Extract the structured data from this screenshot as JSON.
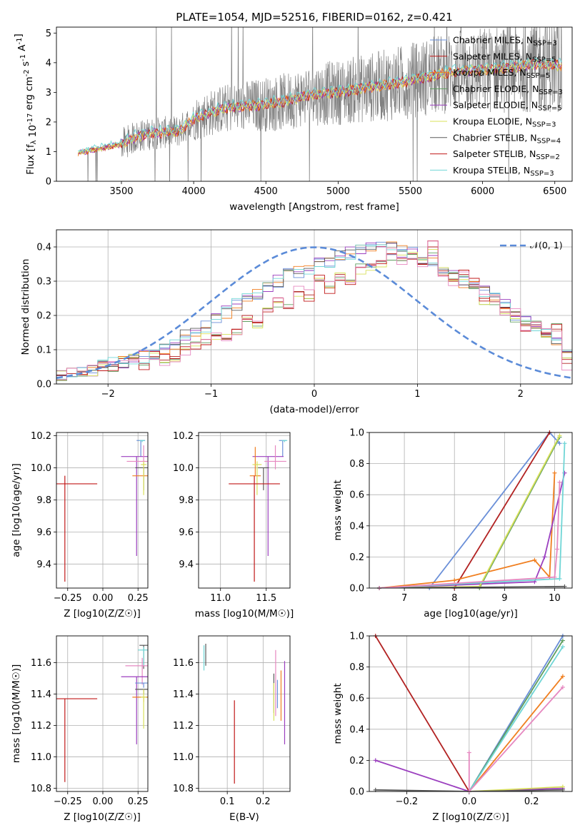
{
  "title": "PLATE=1054, MJD=52516, FIBERID=0162, z=0.421",
  "colors": [
    "#6a8fd8",
    "#b22222",
    "#f07f20",
    "#5f9e5f",
    "#9b3fbf",
    "#d8e05a",
    "#5a5a5a",
    "#c01818",
    "#70d6d6",
    "#e688c0"
  ],
  "chart_data": [
    {
      "type": "line",
      "name": "spectrum",
      "xlabel": "wavelength [Angstrom, rest frame]",
      "ylabel": "Flux [f_λ 10^-17 erg cm^-2 s^-1 A^-1]",
      "xlim": [
        3050,
        6620
      ],
      "ylim": [
        0,
        5.2
      ],
      "xticks": [
        "3500",
        "4000",
        "4500",
        "5000",
        "5500",
        "6000",
        "6500"
      ],
      "yticks": [
        "0",
        "1",
        "2",
        "3",
        "4",
        "5"
      ],
      "legend_position": "upper right",
      "data_range": [
        3200,
        6550
      ],
      "model_anchors_x": [
        3200,
        3500,
        3600,
        3700,
        3900,
        4000,
        4200,
        4400,
        4600,
        4800,
        5000,
        5200,
        5400,
        5600,
        5800,
        6000,
        6200,
        6400,
        6550
      ],
      "model_anchors_y": [
        0.95,
        1.25,
        1.5,
        1.6,
        1.7,
        2.1,
        2.45,
        2.55,
        2.65,
        2.9,
        3.0,
        3.15,
        3.3,
        3.5,
        3.7,
        3.75,
        3.85,
        3.95,
        3.9
      ],
      "series": [
        {
          "name": "Chabrier MILES, N_SSP=3"
        },
        {
          "name": "Salpeter MILES, N_SSP=5"
        },
        {
          "name": "Kroupa MILES, N_SSP=5"
        },
        {
          "name": "Chabrier ELODIE, N_SSP=3"
        },
        {
          "name": "Salpeter ELODIE, N_SSP=5"
        },
        {
          "name": "Kroupa ELODIE, N_SSP=3"
        },
        {
          "name": "Chabrier STELIB, N_SSP=4"
        },
        {
          "name": "Salpeter STELIB, N_SSP=2"
        },
        {
          "name": "Kroupa STELIB, N_SSP=3"
        }
      ]
    },
    {
      "type": "line",
      "name": "residual histogram",
      "xlabel": "(data-model)/error",
      "ylabel": "Normed distribution",
      "xlim": [
        -2.5,
        2.5
      ],
      "ylim": [
        0,
        0.45
      ],
      "xticks": [
        "−2",
        "−1",
        "0",
        "1",
        "2"
      ],
      "yticks": [
        "0.0",
        "0.1",
        "0.2",
        "0.3",
        "0.4"
      ],
      "bin_width": 0.1,
      "bin_start": -2.5,
      "reference": {
        "name": "𝒩(0, 1)",
        "mean": 0,
        "sigma": 1
      },
      "series": [
        {
          "values": [
            0.02,
            0.025,
            0.03,
            0.04,
            0.05,
            0.06,
            0.065,
            0.07,
            0.08,
            0.09,
            0.1,
            0.12,
            0.14,
            0.15,
            0.17,
            0.19,
            0.21,
            0.23,
            0.25,
            0.26,
            0.28,
            0.3,
            0.32,
            0.33,
            0.34,
            0.355,
            0.36,
            0.37,
            0.38,
            0.39,
            0.395,
            0.395,
            0.395,
            0.39,
            0.38,
            0.37,
            0.36,
            0.34,
            0.32,
            0.3,
            0.29,
            0.27,
            0.25,
            0.23,
            0.2,
            0.18,
            0.16,
            0.14,
            0.12,
            0.1
          ]
        },
        {
          "values": [
            0.025,
            0.03,
            0.035,
            0.04,
            0.05,
            0.055,
            0.06,
            0.07,
            0.06,
            0.08,
            0.07,
            0.08,
            0.1,
            0.12,
            0.13,
            0.14,
            0.13,
            0.16,
            0.2,
            0.18,
            0.22,
            0.24,
            0.22,
            0.27,
            0.26,
            0.3,
            0.28,
            0.32,
            0.3,
            0.34,
            0.35,
            0.36,
            0.38,
            0.36,
            0.38,
            0.35,
            0.4,
            0.33,
            0.3,
            0.32,
            0.29,
            0.25,
            0.24,
            0.21,
            0.2,
            0.17,
            0.18,
            0.15,
            0.16,
            0.06
          ]
        }
      ]
    },
    {
      "type": "scatter",
      "name": "age vs metallicity",
      "xlabel": "Z [log10(Z/Z☉)]",
      "ylabel": "age  [log10(age/yr)]",
      "xlim": [
        -0.33,
        0.32
      ],
      "ylim": [
        9.25,
        10.22
      ],
      "xticks": [
        "−0.25",
        "0.00",
        "0.25"
      ],
      "yticks": [
        "9.4",
        "9.6",
        "9.8",
        "10.0",
        "10.2"
      ],
      "markers": [
        {
          "x": 0.27,
          "y": 10.17,
          "xerr": 0.03,
          "yerr_lo": 0.1,
          "yerr_hi": 0.0,
          "color": 0
        },
        {
          "x": 0.24,
          "y": 10.07,
          "xerr": 0.11,
          "yerr_lo": 0.62,
          "yerr_hi": 0.0,
          "color": 4
        },
        {
          "x": 0.29,
          "y": 10.04,
          "xerr": 0.12,
          "yerr_lo": 0.05,
          "yerr_hi": 0.1,
          "color": 9
        },
        {
          "x": 0.29,
          "y": 10.0,
          "xerr": 0.06,
          "yerr_lo": 0.14,
          "yerr_hi": 0.0,
          "color": 6
        },
        {
          "x": 0.29,
          "y": 9.95,
          "xerr": 0.08,
          "yerr_lo": 0.0,
          "yerr_hi": 0.0,
          "color": 2
        },
        {
          "x": 0.29,
          "y": 10.02,
          "xerr": 0.02,
          "yerr_lo": 0.19,
          "yerr_hi": 0.02,
          "color": 5
        },
        {
          "x": 0.28,
          "y": 10.17,
          "xerr": 0.02,
          "yerr_lo": 0.01,
          "yerr_hi": 0.0,
          "color": 8
        },
        {
          "x": -0.27,
          "y": 9.9,
          "xerr": 0.23,
          "yerr_lo": 0.61,
          "yerr_hi": 0.05,
          "color": 7
        }
      ]
    },
    {
      "type": "scatter",
      "name": "age vs mass",
      "xlabel": "mass [log10(M/M☉)]",
      "ylabel": "",
      "xlim": [
        10.76,
        11.76
      ],
      "ylim": [
        9.25,
        10.22
      ],
      "xticks": [
        "11.0",
        "11.5"
      ],
      "yticks": [
        "9.4",
        "9.6",
        "9.8",
        "10.0",
        "10.2"
      ],
      "markers": [
        {
          "x": 11.68,
          "y": 10.17,
          "xerr": 0.04,
          "yerr_lo": 0.1,
          "yerr_hi": 0.0,
          "color": 0
        },
        {
          "x": 11.52,
          "y": 10.07,
          "xerr": 0.17,
          "yerr_lo": 0.62,
          "yerr_hi": 0.0,
          "color": 4
        },
        {
          "x": 11.6,
          "y": 10.04,
          "xerr": 0.12,
          "yerr_lo": 0.05,
          "yerr_hi": 0.1,
          "color": 9
        },
        {
          "x": 11.47,
          "y": 10.0,
          "xerr": 0.06,
          "yerr_lo": 0.14,
          "yerr_hi": 0.0,
          "color": 6
        },
        {
          "x": 11.38,
          "y": 9.95,
          "xerr": 0.06,
          "yerr_lo": 0.0,
          "yerr_hi": 0.18,
          "color": 2
        },
        {
          "x": 11.4,
          "y": 10.02,
          "xerr": 0.05,
          "yerr_lo": 0.19,
          "yerr_hi": 0.02,
          "color": 5
        },
        {
          "x": 11.7,
          "y": 10.17,
          "xerr": 0.03,
          "yerr_lo": 0.01,
          "yerr_hi": 0.0,
          "color": 8
        },
        {
          "x": 11.37,
          "y": 9.9,
          "xerr": 0.28,
          "yerr_lo": 0.61,
          "yerr_hi": 0.05,
          "color": 7
        }
      ]
    },
    {
      "type": "line",
      "name": "mass weight vs age",
      "xlabel": "age  [log10(age/yr)]",
      "ylabel": "mass weight",
      "xlim": [
        6.3,
        10.35
      ],
      "ylim": [
        0,
        1
      ],
      "xticks": [
        "7",
        "8",
        "9",
        "10"
      ],
      "yticks": [
        "0.0",
        "0.2",
        "0.4",
        "0.6",
        "0.8",
        "1.0"
      ],
      "series": [
        {
          "color": 0,
          "x": [
            6.5,
            7.5,
            9.9,
            10.1
          ],
          "y": [
            0.0,
            0.0,
            1.0,
            0.93
          ]
        },
        {
          "color": 1,
          "x": [
            6.5,
            8.0,
            9.9
          ],
          "y": [
            0.0,
            0.0,
            1.0
          ]
        },
        {
          "color": 2,
          "x": [
            6.5,
            8.0,
            9.6,
            9.9,
            10.0
          ],
          "y": [
            0.0,
            0.05,
            0.18,
            0.07,
            0.74
          ]
        },
        {
          "color": 3,
          "x": [
            6.5,
            8.5,
            10.1
          ],
          "y": [
            0.0,
            0.0,
            0.97
          ]
        },
        {
          "color": 4,
          "x": [
            6.5,
            9.6,
            9.8,
            10.2
          ],
          "y": [
            0.0,
            0.04,
            0.2,
            0.74
          ]
        },
        {
          "color": 5,
          "x": [
            6.5,
            8.5,
            10.1
          ],
          "y": [
            0.0,
            0.01,
            0.98
          ]
        },
        {
          "color": 6,
          "x": [
            6.5,
            10.2
          ],
          "y": [
            0.0,
            0.01
          ]
        },
        {
          "color": 8,
          "x": [
            6.5,
            10.1,
            10.2
          ],
          "y": [
            0.0,
            0.06,
            0.93
          ]
        },
        {
          "color": 9,
          "x": [
            6.5,
            10.0,
            10.05,
            10.1
          ],
          "y": [
            0.0,
            0.07,
            0.25,
            0.68
          ]
        }
      ]
    },
    {
      "type": "scatter",
      "name": "mass vs metallicity",
      "xlabel": "Z [log10(Z/Z☉)]",
      "ylabel": "mass [log10(M/M☉)]",
      "xlim": [
        -0.33,
        0.32
      ],
      "ylim": [
        10.78,
        11.77
      ],
      "xticks": [
        "−0.25",
        "0.00",
        "0.25"
      ],
      "yticks": [
        "10.8",
        "11.0",
        "11.2",
        "11.4",
        "11.6"
      ],
      "markers": [
        {
          "x": 0.29,
          "y": 11.71,
          "xerr": 0.03,
          "yerr_lo": 0.15,
          "yerr_hi": 0.0,
          "color": 6
        },
        {
          "x": 0.29,
          "y": 11.68,
          "xerr": 0.04,
          "yerr_lo": 0.1,
          "yerr_hi": 0.02,
          "color": 8
        },
        {
          "x": 0.28,
          "y": 11.58,
          "xerr": 0.12,
          "yerr_lo": 0.12,
          "yerr_hi": 0.05,
          "color": 9
        },
        {
          "x": 0.24,
          "y": 11.51,
          "xerr": 0.11,
          "yerr_lo": 0.43,
          "yerr_hi": 0.0,
          "color": 4
        },
        {
          "x": 0.29,
          "y": 11.47,
          "xerr": 0.06,
          "yerr_lo": 0.03,
          "yerr_hi": 0.0,
          "color": 0
        },
        {
          "x": 0.29,
          "y": 11.43,
          "xerr": 0.06,
          "yerr_lo": 0.03,
          "yerr_hi": 0.0,
          "color": 6
        },
        {
          "x": 0.29,
          "y": 11.38,
          "xerr": 0.08,
          "yerr_lo": 0.03,
          "yerr_hi": 0.0,
          "color": 2
        },
        {
          "x": 0.29,
          "y": 11.38,
          "xerr": 0.02,
          "yerr_lo": 0.2,
          "yerr_hi": 0.05,
          "color": 5
        },
        {
          "x": -0.27,
          "y": 11.37,
          "xerr": 0.23,
          "yerr_lo": 0.53,
          "yerr_hi": 0.0,
          "color": 7
        }
      ]
    },
    {
      "type": "scatter",
      "name": "mass vs extinction",
      "xlabel": "E(B-V)",
      "ylabel": "",
      "xlim": [
        0.02,
        0.275
      ],
      "ylim": [
        10.78,
        11.77
      ],
      "xticks": [
        "0.1",
        "0.2"
      ],
      "yticks": [
        "10.8",
        "11.0",
        "11.2",
        "11.4",
        "11.6"
      ],
      "vlines": [
        {
          "x": 0.04,
          "y0": 11.58,
          "y1": 11.72,
          "color": 6
        },
        {
          "x": 0.035,
          "y0": 11.55,
          "y1": 11.71,
          "color": 8
        },
        {
          "x": 0.12,
          "y0": 10.83,
          "y1": 11.36,
          "color": 7
        },
        {
          "x": 0.23,
          "y0": 11.28,
          "y1": 11.53,
          "color": 6
        },
        {
          "x": 0.23,
          "y0": 11.23,
          "y1": 11.47,
          "color": 5
        },
        {
          "x": 0.235,
          "y0": 11.26,
          "y1": 11.68,
          "color": 9
        },
        {
          "x": 0.24,
          "y0": 11.31,
          "y1": 11.49,
          "color": 0
        },
        {
          "x": 0.25,
          "y0": 11.23,
          "y1": 11.55,
          "color": 2
        },
        {
          "x": 0.26,
          "y0": 11.08,
          "y1": 11.61,
          "color": 4
        }
      ]
    },
    {
      "type": "line",
      "name": "mass weight vs metallicity",
      "xlabel": "Z [log10(Z/Z☉)]",
      "ylabel": "mass weight",
      "xlim": [
        -0.32,
        0.33
      ],
      "ylim": [
        0,
        1
      ],
      "xticks": [
        "−0.2",
        "0.0",
        "0.2"
      ],
      "yticks": [
        "0.0",
        "0.2",
        "0.4",
        "0.6",
        "0.8",
        "1.0"
      ],
      "series": [
        {
          "color": 0,
          "x": [
            0.0,
            0.3
          ],
          "y": [
            0.0,
            1.0
          ]
        },
        {
          "color": 1,
          "x": [
            -0.3,
            0.0
          ],
          "y": [
            1.0,
            0.0
          ]
        },
        {
          "color": 2,
          "x": [
            0.0,
            0.3
          ],
          "y": [
            0.0,
            0.74
          ]
        },
        {
          "color": 3,
          "x": [
            0.0,
            0.3
          ],
          "y": [
            0.0,
            0.97
          ]
        },
        {
          "color": 4,
          "x": [
            -0.3,
            0.0,
            0.3
          ],
          "y": [
            0.2,
            0.0,
            0.02
          ]
        },
        {
          "color": 5,
          "x": [
            0.0,
            0.3
          ],
          "y": [
            0.0,
            0.03
          ]
        },
        {
          "color": 6,
          "x": [
            -0.3,
            0.0,
            0.3
          ],
          "y": [
            0.01,
            0.0,
            0.01
          ]
        },
        {
          "color": 8,
          "x": [
            0.0,
            0.3
          ],
          "y": [
            0.0,
            0.93
          ]
        },
        {
          "color": 9,
          "x": [
            0.0,
            0.0,
            0.3
          ],
          "y": [
            0.25,
            0.0,
            0.67
          ]
        }
      ]
    }
  ]
}
